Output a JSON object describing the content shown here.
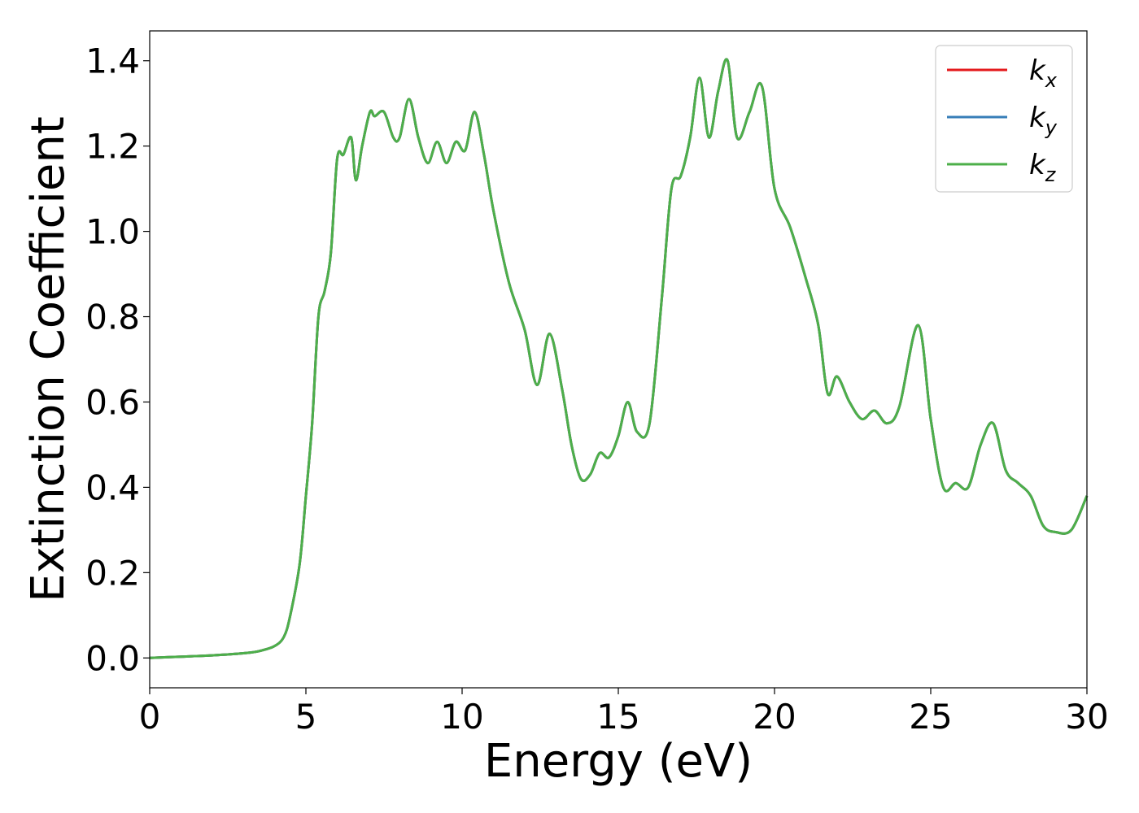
{
  "chart_data": {
    "type": "line",
    "title": "",
    "xlabel": "Energy (eV)",
    "ylabel": "Extinction Coefficient",
    "xlim": [
      0,
      30
    ],
    "ylim": [
      -0.07,
      1.47
    ],
    "xticks": [
      0,
      5,
      10,
      15,
      20,
      25,
      30
    ],
    "xtick_labels": [
      "0",
      "5",
      "10",
      "15",
      "20",
      "25",
      "30"
    ],
    "yticks": [
      0.0,
      0.2,
      0.4,
      0.6,
      0.8,
      1.0,
      1.2,
      1.4
    ],
    "ytick_labels": [
      "0.0",
      "0.2",
      "0.4",
      "0.6",
      "0.8",
      "1.0",
      "1.2",
      "1.4"
    ],
    "grid": false,
    "legend_position": "top-right",
    "x": [
      0,
      1,
      2,
      3,
      3.5,
      4,
      4.3,
      4.5,
      4.8,
      5.0,
      5.2,
      5.4,
      5.6,
      5.8,
      6.0,
      6.2,
      6.45,
      6.6,
      6.8,
      7.05,
      7.2,
      7.5,
      7.8,
      8.0,
      8.3,
      8.6,
      8.9,
      9.2,
      9.5,
      9.8,
      10.1,
      10.4,
      10.7,
      11.0,
      11.5,
      12.0,
      12.4,
      12.8,
      13.2,
      13.5,
      13.8,
      14.1,
      14.4,
      14.7,
      15.0,
      15.3,
      15.6,
      16.0,
      16.4,
      16.7,
      17.0,
      17.3,
      17.6,
      17.9,
      18.2,
      18.5,
      18.8,
      19.2,
      19.6,
      20.0,
      20.5,
      21.0,
      21.4,
      21.7,
      22.0,
      22.4,
      22.8,
      23.2,
      23.6,
      24.0,
      24.6,
      25.0,
      25.4,
      25.8,
      26.2,
      26.6,
      27.0,
      27.4,
      27.8,
      28.2,
      28.6,
      29.0,
      29.5,
      30.0
    ],
    "series": [
      {
        "name": "k_x",
        "color": "#e41a1c"
      },
      {
        "name": "k_y",
        "color": "#377eb8"
      },
      {
        "name": "k_z",
        "color": "#4daf4a"
      }
    ],
    "y": [
      0.0,
      0.003,
      0.006,
      0.011,
      0.016,
      0.028,
      0.05,
      0.1,
      0.22,
      0.38,
      0.55,
      0.8,
      0.86,
      0.95,
      1.17,
      1.18,
      1.22,
      1.12,
      1.2,
      1.28,
      1.27,
      1.28,
      1.22,
      1.22,
      1.31,
      1.22,
      1.16,
      1.21,
      1.16,
      1.21,
      1.19,
      1.28,
      1.18,
      1.05,
      0.88,
      0.77,
      0.64,
      0.76,
      0.63,
      0.5,
      0.42,
      0.43,
      0.48,
      0.47,
      0.52,
      0.6,
      0.53,
      0.55,
      0.85,
      1.1,
      1.13,
      1.22,
      1.36,
      1.22,
      1.33,
      1.4,
      1.22,
      1.28,
      1.34,
      1.1,
      1.01,
      0.89,
      0.78,
      0.62,
      0.66,
      0.6,
      0.56,
      0.58,
      0.55,
      0.59,
      0.78,
      0.56,
      0.4,
      0.41,
      0.4,
      0.5,
      0.55,
      0.44,
      0.41,
      0.38,
      0.31,
      0.295,
      0.3,
      0.38
    ]
  },
  "legend": {
    "entries": [
      {
        "base": "k",
        "sub": "x",
        "color": "#e41a1c"
      },
      {
        "base": "k",
        "sub": "y",
        "color": "#377eb8"
      },
      {
        "base": "k",
        "sub": "z",
        "color": "#4daf4a"
      }
    ]
  }
}
